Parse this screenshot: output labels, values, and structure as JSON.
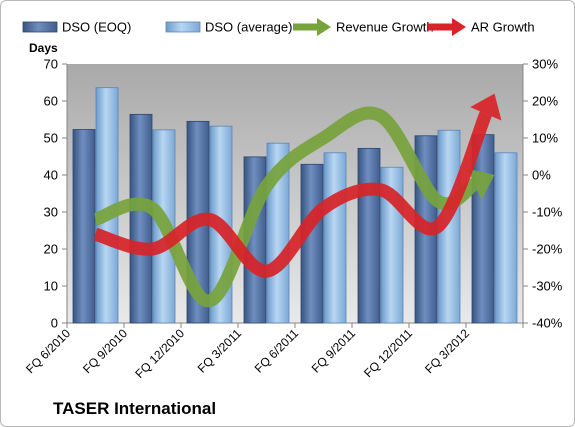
{
  "footer_title": "TASER International",
  "chart_data": {
    "type": "bar",
    "title": "",
    "ylabel": "Days",
    "y2label": "",
    "categories": [
      "FQ 6/2010",
      "FQ 9/2010",
      "FQ 12/2010",
      "FQ 3/2011",
      "FQ 6/2011",
      "FQ 9/2011",
      "FQ 12/2011",
      "FQ 3/2012"
    ],
    "ylim": [
      0,
      70
    ],
    "y_ticks": [
      0,
      10,
      20,
      30,
      40,
      50,
      60,
      70
    ],
    "y2lim": [
      -40,
      30
    ],
    "y2_ticks": [
      "-40%",
      "-30%",
      "-20%",
      "-10%",
      "0%",
      "10%",
      "20%",
      "30%"
    ],
    "legend_position": "top",
    "grid": false,
    "series": [
      {
        "name": "DSO (EOQ)",
        "type": "bar",
        "axis": "left",
        "color": "#4a6a99",
        "values": [
          52.3,
          56.4,
          54.5,
          44.9,
          42.9,
          47.2,
          50.6,
          50.9
        ]
      },
      {
        "name": "DSO (average)",
        "type": "bar",
        "axis": "left",
        "color": "#8eb6e0",
        "values": [
          63.6,
          52.2,
          53.2,
          48.6,
          46.0,
          42.1,
          52.1,
          46.0
        ]
      },
      {
        "name": "Revenue Growth",
        "type": "line",
        "axis": "right",
        "unit": "%",
        "color": "#77a33c",
        "values": [
          -12,
          -9,
          -34,
          -3,
          10,
          16,
          -7,
          0
        ]
      },
      {
        "name": "AR Growth",
        "type": "line",
        "axis": "right",
        "unit": "%",
        "color": "#d72329",
        "values": [
          -16,
          -20,
          -12,
          -26,
          -9,
          -4,
          -14,
          22
        ]
      }
    ]
  }
}
